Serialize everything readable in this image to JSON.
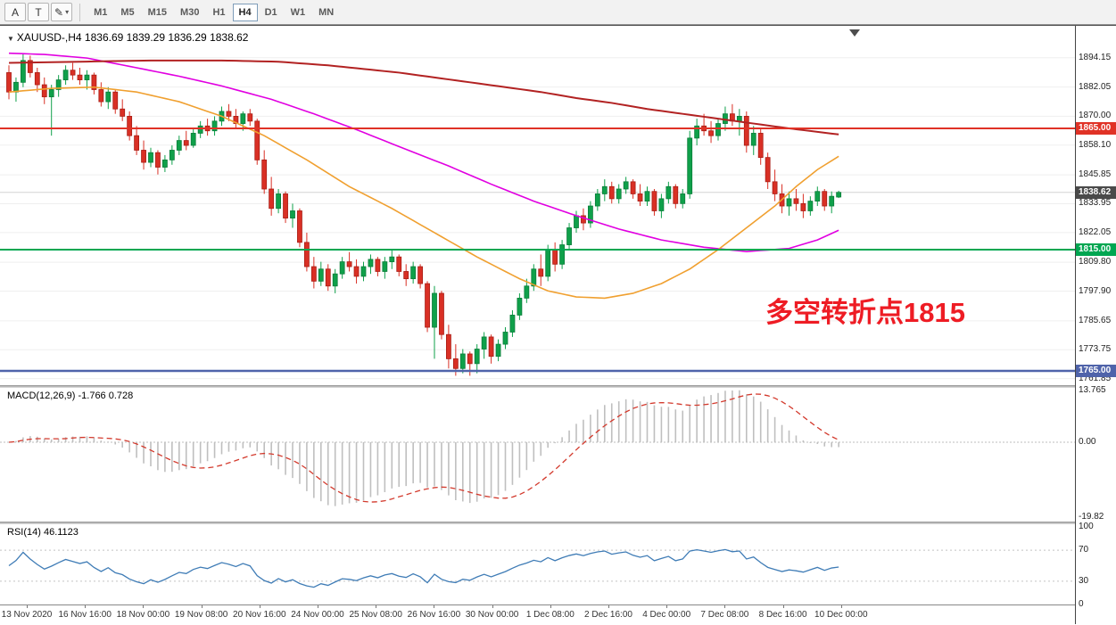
{
  "toolbar": {
    "a_label": "A",
    "t_label": "T",
    "pen_label": "✎",
    "caret": "▾",
    "timeframes": [
      "M1",
      "M5",
      "M15",
      "M30",
      "H1",
      "H4",
      "D1",
      "W1",
      "MN"
    ],
    "active_timeframe": "H4"
  },
  "chart": {
    "symbol_header": "XAUUSD-,H4  1836.69 1839.29 1836.29 1838.62",
    "annotation": "多空转折点1815",
    "price_axis_labels": [
      "1894.15",
      "1882.05",
      "1870.00",
      "1858.10",
      "1845.85",
      "1833.95",
      "1822.05",
      "1809.80",
      "1797.90",
      "1785.65",
      "1773.75",
      "1761.85"
    ],
    "price_markers": [
      {
        "label": "1865.00",
        "price": 1865.0,
        "bg": "#e03226",
        "fg": "#ffffff"
      },
      {
        "label": "1838.62",
        "price": 1838.62,
        "bg": "#4a4a4a",
        "fg": "#ffffff"
      },
      {
        "label": "1815.00",
        "price": 1815.0,
        "bg": "#00a651",
        "fg": "#ffffff"
      },
      {
        "label": "1765.00",
        "price": 1765.0,
        "bg": "#4f63aa",
        "fg": "#ffffff"
      }
    ]
  },
  "macd_panel": {
    "title": "MACD(12,26,9)",
    "values": "-1.766 0.728",
    "axis": [
      {
        "label": "13.765",
        "value": 13.765
      },
      {
        "label": "0.00",
        "value": 0
      },
      {
        "label": "-19.82",
        "value": -19.82
      }
    ]
  },
  "rsi_panel": {
    "title": "RSI(14)",
    "value": "46.1123",
    "axis": [
      {
        "label": "100",
        "value": 100
      },
      {
        "label": "70",
        "value": 70
      },
      {
        "label": "30",
        "value": 30
      },
      {
        "label": "0",
        "value": 0
      }
    ]
  },
  "time_axis": {
    "labels": [
      "13 Nov 2020",
      "16 Nov 16:00",
      "18 Nov 00:00",
      "19 Nov 08:00",
      "20 Nov 16:00",
      "24 Nov 00:00",
      "25 Nov 08:00",
      "26 Nov 16:00",
      "30 Nov 00:00",
      "1 Dec 08:00",
      "2 Dec 16:00",
      "4 Dec 00:00",
      "7 Dec 08:00",
      "8 Dec 16:00",
      "10 Dec 00:00"
    ]
  },
  "chart_data": {
    "type": "candlestick",
    "symbol": "XAUUSD-",
    "timeframe": "H4",
    "current_price": 1838.62,
    "up_color": "#0fa04a",
    "down_color": "#d93025",
    "price_axis_range": [
      1761.85,
      1894.15
    ],
    "ohlc": [
      [
        1888,
        1891,
        1877,
        1880
      ],
      [
        1880,
        1886,
        1876,
        1884
      ],
      [
        1884,
        1896,
        1882,
        1893
      ],
      [
        1893,
        1895,
        1886,
        1888
      ],
      [
        1888,
        1890,
        1880,
        1883
      ],
      [
        1883,
        1886,
        1875,
        1878
      ],
      [
        1878,
        1883,
        1862,
        1881
      ],
      [
        1881,
        1887,
        1878,
        1885
      ],
      [
        1885,
        1891,
        1883,
        1889
      ],
      [
        1889,
        1892,
        1885,
        1887
      ],
      [
        1887,
        1890,
        1883,
        1885
      ],
      [
        1885,
        1889,
        1881,
        1887
      ],
      [
        1887,
        1888,
        1879,
        1881
      ],
      [
        1881,
        1884,
        1874,
        1876
      ],
      [
        1876,
        1882,
        1873,
        1880
      ],
      [
        1880,
        1881,
        1871,
        1873
      ],
      [
        1873,
        1877,
        1868,
        1870
      ],
      [
        1870,
        1872,
        1860,
        1862
      ],
      [
        1862,
        1866,
        1854,
        1856
      ],
      [
        1856,
        1860,
        1848,
        1851
      ],
      [
        1851,
        1857,
        1849,
        1855
      ],
      [
        1855,
        1856,
        1846,
        1849
      ],
      [
        1849,
        1854,
        1847,
        1852
      ],
      [
        1852,
        1858,
        1850,
        1856
      ],
      [
        1856,
        1862,
        1854,
        1860
      ],
      [
        1860,
        1864,
        1856,
        1858
      ],
      [
        1858,
        1865,
        1857,
        1863
      ],
      [
        1863,
        1868,
        1861,
        1866
      ],
      [
        1866,
        1869,
        1862,
        1864
      ],
      [
        1864,
        1870,
        1862,
        1868
      ],
      [
        1868,
        1874,
        1866,
        1872
      ],
      [
        1872,
        1875,
        1868,
        1870
      ],
      [
        1870,
        1873,
        1865,
        1867
      ],
      [
        1867,
        1872,
        1864,
        1871
      ],
      [
        1871,
        1873,
        1866,
        1868
      ],
      [
        1868,
        1869,
        1850,
        1852
      ],
      [
        1852,
        1856,
        1838,
        1840
      ],
      [
        1840,
        1845,
        1829,
        1832
      ],
      [
        1832,
        1840,
        1830,
        1838
      ],
      [
        1838,
        1839,
        1826,
        1828
      ],
      [
        1828,
        1834,
        1824,
        1831
      ],
      [
        1831,
        1832,
        1816,
        1818
      ],
      [
        1818,
        1822,
        1806,
        1808
      ],
      [
        1808,
        1812,
        1799,
        1802
      ],
      [
        1802,
        1810,
        1800,
        1807
      ],
      [
        1807,
        1809,
        1798,
        1800
      ],
      [
        1800,
        1807,
        1797,
        1805
      ],
      [
        1805,
        1812,
        1803,
        1810
      ],
      [
        1810,
        1814,
        1806,
        1808
      ],
      [
        1808,
        1811,
        1801,
        1804
      ],
      [
        1804,
        1810,
        1802,
        1808
      ],
      [
        1808,
        1813,
        1805,
        1811
      ],
      [
        1811,
        1812,
        1804,
        1806
      ],
      [
        1806,
        1812,
        1803,
        1810
      ],
      [
        1810,
        1815,
        1807,
        1812
      ],
      [
        1812,
        1813,
        1804,
        1806
      ],
      [
        1806,
        1809,
        1800,
        1803
      ],
      [
        1803,
        1810,
        1801,
        1808
      ],
      [
        1808,
        1809,
        1799,
        1801
      ],
      [
        1801,
        1802,
        1781,
        1783
      ],
      [
        1783,
        1800,
        1770,
        1797
      ],
      [
        1797,
        1798,
        1778,
        1780
      ],
      [
        1780,
        1784,
        1766,
        1770
      ],
      [
        1770,
        1776,
        1763,
        1766
      ],
      [
        1766,
        1774,
        1764,
        1772
      ],
      [
        1772,
        1773,
        1763,
        1768
      ],
      [
        1768,
        1776,
        1764,
        1774
      ],
      [
        1774,
        1781,
        1770,
        1779
      ],
      [
        1779,
        1780,
        1768,
        1771
      ],
      [
        1771,
        1778,
        1769,
        1776
      ],
      [
        1776,
        1783,
        1774,
        1781
      ],
      [
        1781,
        1790,
        1779,
        1788
      ],
      [
        1788,
        1797,
        1786,
        1795
      ],
      [
        1795,
        1803,
        1793,
        1800
      ],
      [
        1800,
        1809,
        1798,
        1807
      ],
      [
        1807,
        1813,
        1800,
        1804
      ],
      [
        1804,
        1817,
        1802,
        1815
      ],
      [
        1815,
        1818,
        1806,
        1809
      ],
      [
        1809,
        1819,
        1807,
        1817
      ],
      [
        1817,
        1826,
        1815,
        1824
      ],
      [
        1824,
        1831,
        1822,
        1829
      ],
      [
        1829,
        1832,
        1823,
        1826
      ],
      [
        1826,
        1835,
        1824,
        1833
      ],
      [
        1833,
        1840,
        1831,
        1838
      ],
      [
        1838,
        1844,
        1835,
        1841
      ],
      [
        1841,
        1843,
        1834,
        1836
      ],
      [
        1836,
        1842,
        1834,
        1840
      ],
      [
        1840,
        1845,
        1838,
        1843
      ],
      [
        1843,
        1844,
        1836,
        1838
      ],
      [
        1838,
        1842,
        1833,
        1835
      ],
      [
        1835,
        1841,
        1833,
        1839
      ],
      [
        1839,
        1840,
        1829,
        1831
      ],
      [
        1831,
        1838,
        1828,
        1836
      ],
      [
        1836,
        1843,
        1834,
        1841
      ],
      [
        1841,
        1842,
        1832,
        1834
      ],
      [
        1834,
        1840,
        1832,
        1838
      ],
      [
        1838,
        1864,
        1836,
        1861
      ],
      [
        1861,
        1869,
        1858,
        1866
      ],
      [
        1866,
        1871,
        1862,
        1864
      ],
      [
        1864,
        1868,
        1859,
        1862
      ],
      [
        1862,
        1869,
        1860,
        1867
      ],
      [
        1867,
        1874,
        1864,
        1871
      ],
      [
        1871,
        1875,
        1866,
        1868
      ],
      [
        1868,
        1873,
        1862,
        1870
      ],
      [
        1870,
        1872,
        1855,
        1858
      ],
      [
        1858,
        1866,
        1854,
        1863
      ],
      [
        1863,
        1865,
        1850,
        1853
      ],
      [
        1853,
        1855,
        1840,
        1843
      ],
      [
        1843,
        1848,
        1835,
        1838
      ],
      [
        1838,
        1842,
        1830,
        1833
      ],
      [
        1833,
        1839,
        1829,
        1836
      ],
      [
        1836,
        1840,
        1831,
        1834
      ],
      [
        1834,
        1838,
        1828,
        1831
      ],
      [
        1831,
        1837,
        1829,
        1835
      ],
      [
        1835,
        1841,
        1833,
        1839
      ],
      [
        1839,
        1840,
        1831,
        1833
      ],
      [
        1833,
        1839,
        1830,
        1837
      ],
      [
        1836.69,
        1839.29,
        1836.29,
        1838.62
      ]
    ],
    "horizontal_lines": [
      {
        "name": "resistance-line",
        "price": 1865.0,
        "color": "#e03226",
        "width": 2
      },
      {
        "name": "pivot-line",
        "price": 1815.0,
        "color": "#00a651",
        "width": 2
      },
      {
        "name": "support-line",
        "price": 1765.0,
        "color": "#4f63aa",
        "width": 2.5
      }
    ],
    "moving_averages": [
      {
        "name": "ma-magenta",
        "color": "#e100e1",
        "width": 1.6,
        "points": [
          [
            0,
            1896
          ],
          [
            5,
            1895.5
          ],
          [
            11,
            1894
          ],
          [
            18,
            1890
          ],
          [
            24,
            1886.5
          ],
          [
            30,
            1882.5
          ],
          [
            37,
            1877
          ],
          [
            43,
            1871
          ],
          [
            49,
            1864.5
          ],
          [
            55,
            1857.5
          ],
          [
            62,
            1849.5
          ],
          [
            68,
            1842
          ],
          [
            74,
            1835
          ],
          [
            80,
            1829
          ],
          [
            86,
            1823.5
          ],
          [
            92,
            1819
          ],
          [
            98,
            1816
          ],
          [
            104,
            1814.2
          ],
          [
            110,
            1815.5
          ],
          [
            114,
            1819
          ],
          [
            117,
            1823
          ]
        ]
      },
      {
        "name": "ma-orange",
        "color": "#f0a030",
        "width": 1.6,
        "points": [
          [
            0,
            1880
          ],
          [
            6,
            1881.5
          ],
          [
            12,
            1882
          ],
          [
            18,
            1880
          ],
          [
            24,
            1876
          ],
          [
            30,
            1870
          ],
          [
            36,
            1862
          ],
          [
            42,
            1852
          ],
          [
            48,
            1841
          ],
          [
            54,
            1832
          ],
          [
            60,
            1822
          ],
          [
            66,
            1812
          ],
          [
            72,
            1803
          ],
          [
            76,
            1798
          ],
          [
            80,
            1795.5
          ],
          [
            84,
            1795
          ],
          [
            88,
            1797
          ],
          [
            92,
            1801
          ],
          [
            96,
            1807
          ],
          [
            100,
            1815
          ],
          [
            104,
            1824
          ],
          [
            108,
            1833
          ],
          [
            111,
            1841
          ],
          [
            114,
            1848
          ],
          [
            117,
            1853.5
          ]
        ]
      },
      {
        "name": "ma-darkred",
        "color": "#b22222",
        "width": 2,
        "points": [
          [
            0,
            1892
          ],
          [
            10,
            1892.5
          ],
          [
            20,
            1893
          ],
          [
            30,
            1893
          ],
          [
            38,
            1892.5
          ],
          [
            45,
            1891
          ],
          [
            50,
            1889.5
          ],
          [
            55,
            1888
          ],
          [
            60,
            1886
          ],
          [
            65,
            1884
          ],
          [
            70,
            1882
          ],
          [
            75,
            1880
          ],
          [
            80,
            1877.5
          ],
          [
            85,
            1875.5
          ],
          [
            90,
            1873
          ],
          [
            95,
            1871
          ],
          [
            100,
            1869
          ],
          [
            105,
            1867
          ],
          [
            110,
            1865
          ],
          [
            117,
            1862.5
          ]
        ]
      }
    ],
    "macd": {
      "fast": 12,
      "slow": 26,
      "signal": 9,
      "current_main": -1.766,
      "current_signal": 0.728,
      "axis_range": [
        -19.82,
        13.765
      ]
    },
    "rsi": {
      "period": 14,
      "current": 46.1123,
      "levels": [
        70,
        30
      ]
    }
  }
}
